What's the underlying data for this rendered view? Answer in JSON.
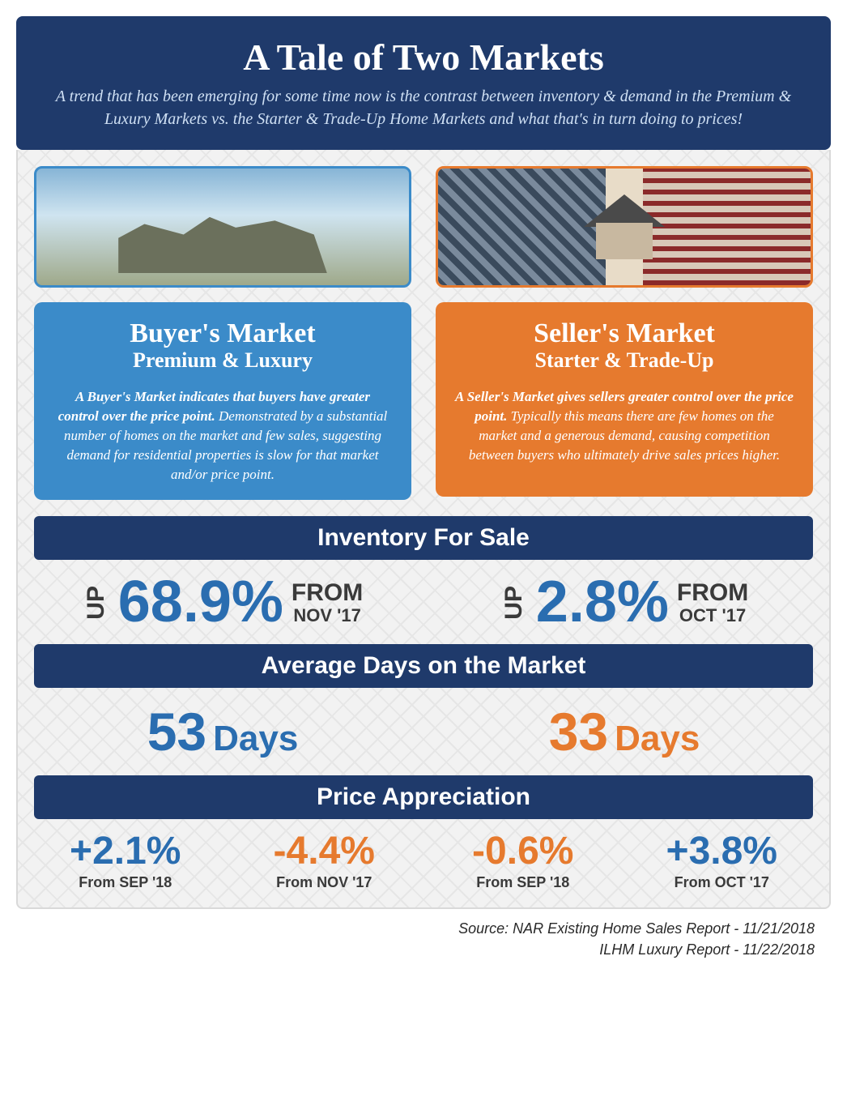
{
  "colors": {
    "navy": "#1f3a6b",
    "blue": "#3b8bc9",
    "orange": "#e67a2e",
    "stat_blue": "#2a6db0",
    "text_dark": "#3a3a3a"
  },
  "header": {
    "title": "A Tale of Two Markets",
    "subtitle": "A trend that has been emerging for some time now is the contrast between inventory & demand in the Premium & Luxury Markets vs. the Starter & Trade-Up Home Markets and what that's in turn doing to prices!"
  },
  "buyer": {
    "title": "Buyer's Market",
    "subtitle": "Premium & Luxury",
    "lead": "A Buyer's Market indicates that buyers have greater control over the price point.",
    "body": " Demonstrated by a substantial number of homes on the market and few sales, suggesting demand for residential properties is slow for that market and/or price point."
  },
  "seller": {
    "title": "Seller's Market",
    "subtitle": "Starter & Trade-Up",
    "lead": "A Seller's Market gives sellers greater control over the price point.",
    "body": " Typically this means there are few homes on the market and a generous demand, causing competition between buyers who ultimately drive sales prices higher."
  },
  "sections": {
    "inventory": "Inventory For Sale",
    "days": "Average Days on the Market",
    "price": "Price Appreciation"
  },
  "inventory": {
    "buyer": {
      "direction": "UP",
      "value": "68.9%",
      "from_label": "FROM",
      "from_date": "NOV '17"
    },
    "seller": {
      "direction": "UP",
      "value": "2.8%",
      "from_label": "FROM",
      "from_date": "OCT '17"
    }
  },
  "days": {
    "buyer": {
      "num": "53",
      "label": "Days"
    },
    "seller": {
      "num": "33",
      "label": "Days"
    }
  },
  "price": {
    "items": [
      {
        "value": "+2.1%",
        "from": "From SEP '18",
        "color": "#2a6db0"
      },
      {
        "value": "-4.4%",
        "from": "From NOV '17",
        "color": "#e67a2e"
      },
      {
        "value": "-0.6%",
        "from": "From SEP '18",
        "color": "#e67a2e"
      },
      {
        "value": "+3.8%",
        "from": "From OCT '17",
        "color": "#2a6db0"
      }
    ]
  },
  "footer": {
    "line1": "Source: NAR Existing Home Sales Report - 11/21/2018",
    "line2": "ILHM Luxury Report - 11/22/2018"
  }
}
